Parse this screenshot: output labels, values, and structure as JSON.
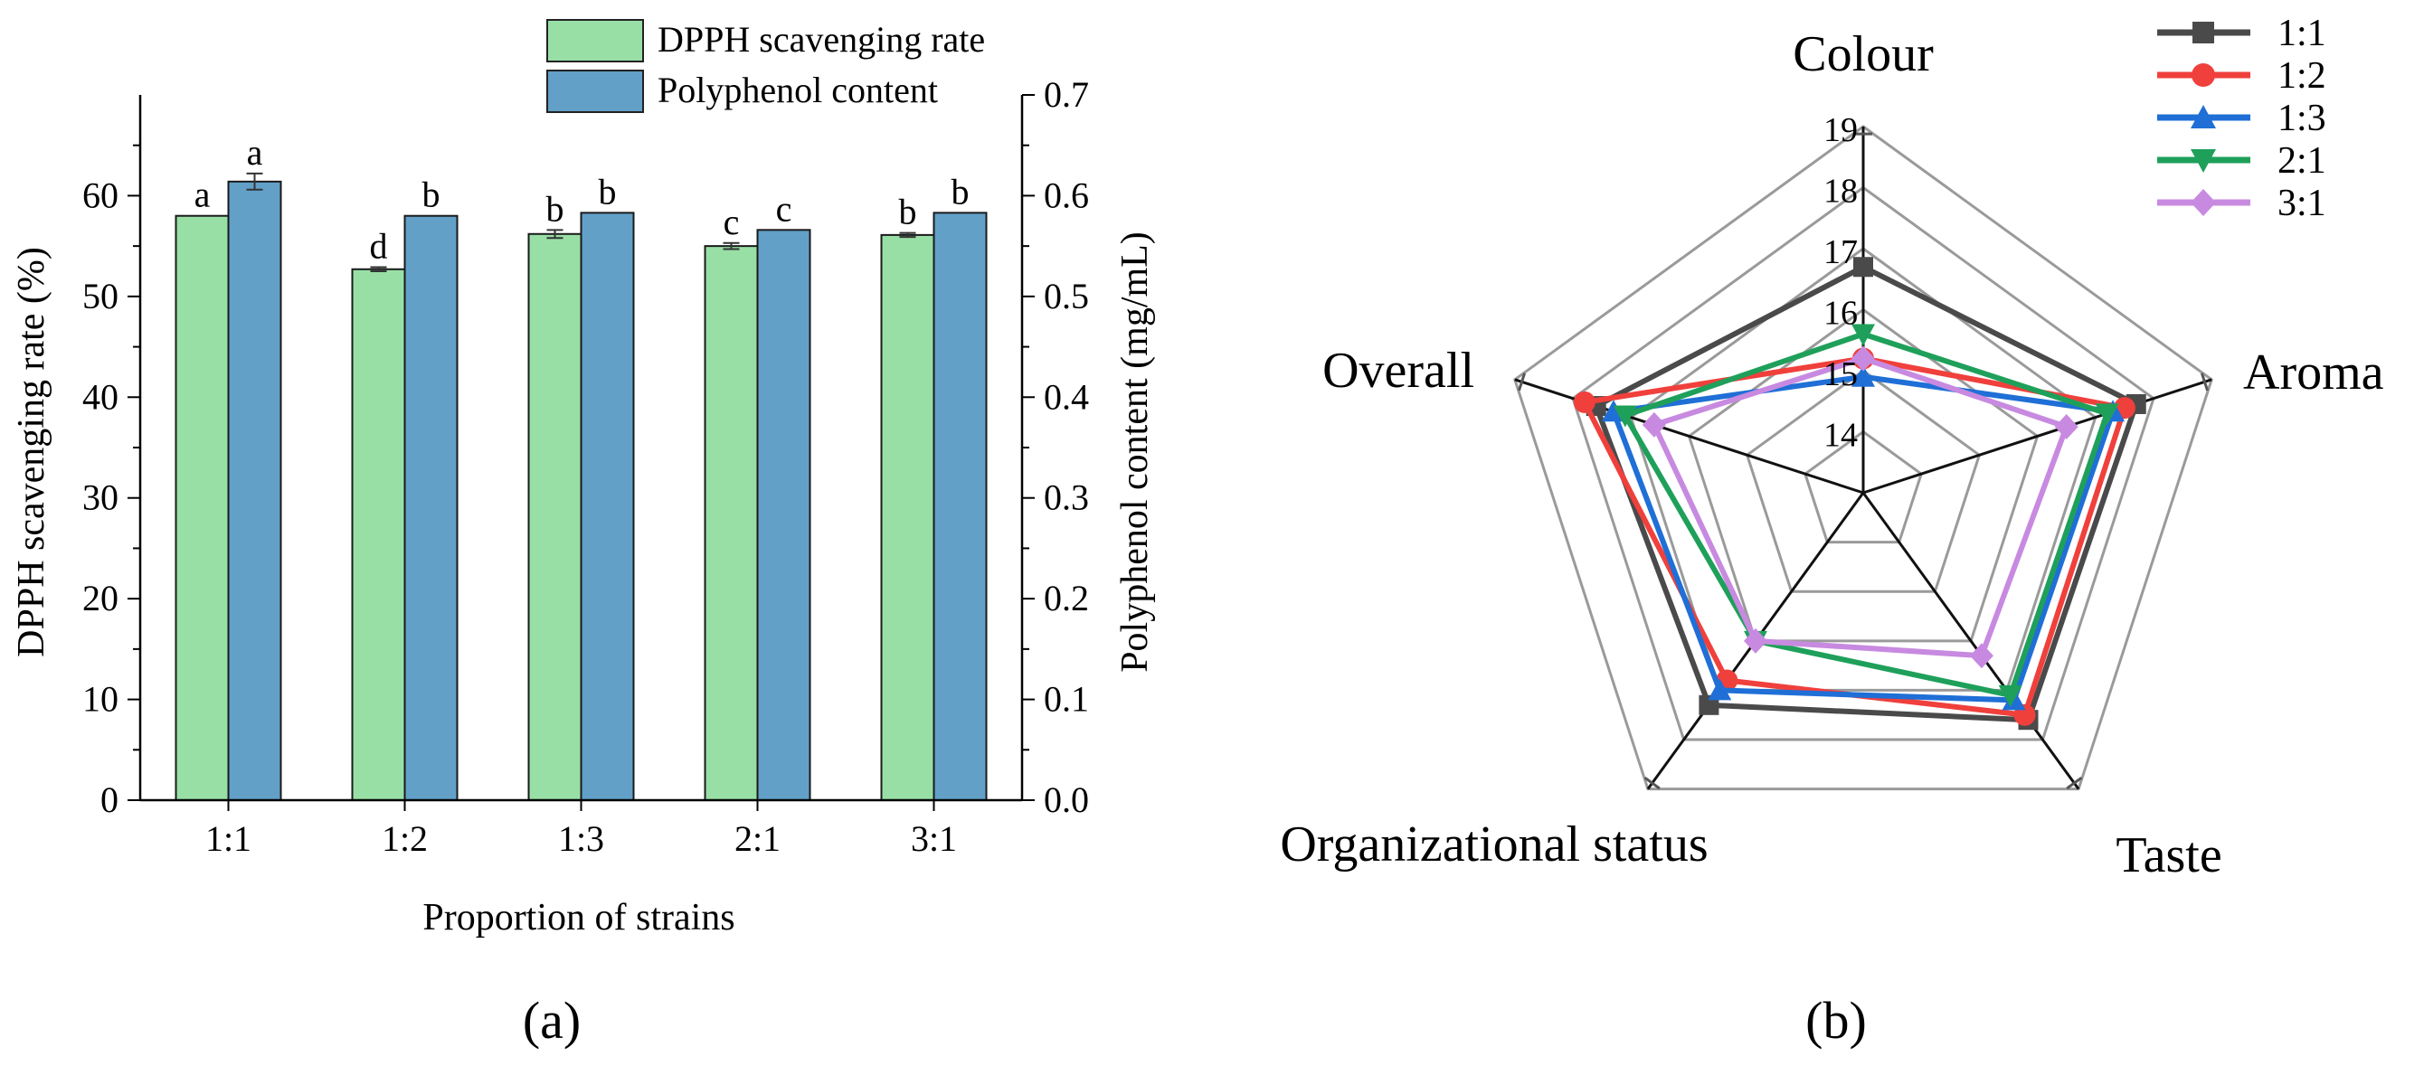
{
  "chart_data": [
    {
      "type": "bar",
      "panel_label": "(a)",
      "xlabel": "Proportion of strains",
      "ylabel": "DPPH scavenging rate (%)",
      "y2label": "Polyphenol content (mg/mL)",
      "ylim": [
        0,
        70
      ],
      "y2lim": [
        0.0,
        0.7
      ],
      "yticks": [
        "0",
        "10",
        "20",
        "30",
        "40",
        "50",
        "60"
      ],
      "y2ticks": [
        "0.0",
        "0.1",
        "0.2",
        "0.3",
        "0.4",
        "0.5",
        "0.6",
        "0.7"
      ],
      "categories": [
        "1:1",
        "1:2",
        "1:3",
        "2:1",
        "3:1"
      ],
      "legend_position": "top-right",
      "series": [
        {
          "name": "DPPH scavenging rate",
          "axis": "left",
          "color": "#98dfa6",
          "values": [
            58.0,
            52.7,
            56.2,
            55.0,
            56.1
          ],
          "errors": [
            0.0,
            0.2,
            0.4,
            0.3,
            0.2
          ],
          "labels": [
            "a",
            "d",
            "b",
            "c",
            "b"
          ]
        },
        {
          "name": "Polyphenol content",
          "axis": "right",
          "color": "#62a0c8",
          "values": [
            0.614,
            0.58,
            0.583,
            0.566,
            0.583
          ],
          "errors": [
            0.008,
            0.0,
            0.0,
            0.0,
            0.0
          ],
          "labels": [
            "a",
            "b",
            "b",
            "c",
            "b"
          ]
        }
      ]
    },
    {
      "type": "radar",
      "panel_label": "(b)",
      "axes": [
        "Colour",
        "Aroma",
        "Taste",
        "Organizational status",
        "Overall"
      ],
      "rlim": [
        13,
        19
      ],
      "rticks": [
        "14",
        "15",
        "16",
        "17",
        "18",
        "19"
      ],
      "legend_position": "top-right",
      "series": [
        {
          "name": "1:1",
          "color": "#4a4a4a",
          "marker": "square",
          "values": [
            16.7,
            17.7,
            17.6,
            17.3,
            17.6
          ]
        },
        {
          "name": "1:2",
          "color": "#f0403c",
          "marker": "circle",
          "values": [
            15.2,
            17.5,
            17.5,
            16.8,
            17.8
          ]
        },
        {
          "name": "1:3",
          "color": "#1f6fd6",
          "marker": "triangle-up",
          "values": [
            14.9,
            17.3,
            17.2,
            17.0,
            17.3
          ]
        },
        {
          "name": "2:1",
          "color": "#1fa05a",
          "marker": "triangle-down",
          "values": [
            15.6,
            17.2,
            17.1,
            16.0,
            17.1
          ]
        },
        {
          "name": "3:1",
          "color": "#c88ae0",
          "marker": "diamond",
          "values": [
            15.2,
            16.5,
            16.3,
            16.0,
            16.6
          ]
        }
      ]
    }
  ]
}
